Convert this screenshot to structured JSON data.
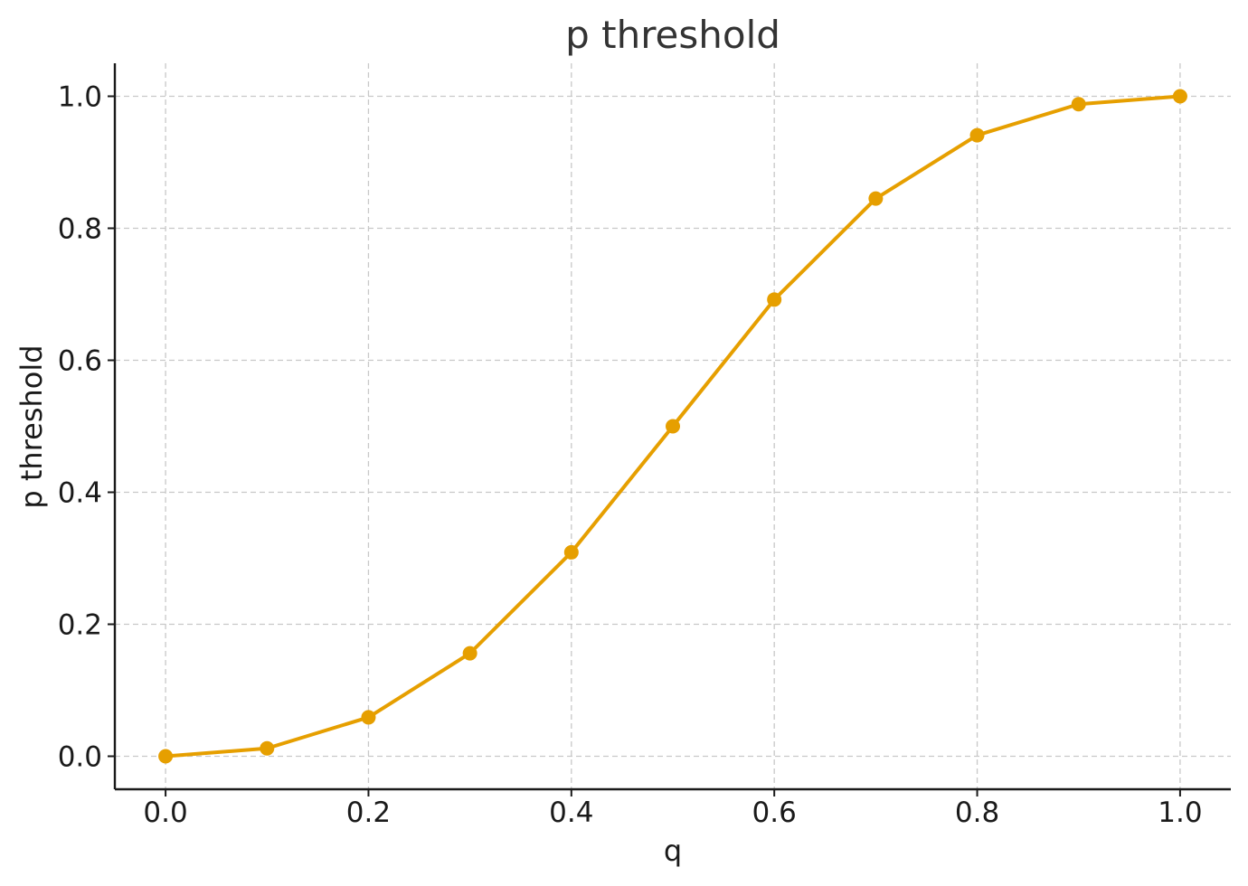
{
  "chart_data": {
    "type": "line",
    "title": "p threshold",
    "xlabel": "q",
    "ylabel": "p threshold",
    "xlim": [
      -0.05,
      1.05
    ],
    "ylim": [
      -0.05,
      1.05
    ],
    "xticks": [
      "0.0",
      "0.2",
      "0.4",
      "0.6",
      "0.8",
      "1.0"
    ],
    "yticks": [
      "0.0",
      "0.2",
      "0.4",
      "0.6",
      "0.8",
      "1.0"
    ],
    "grid": true,
    "series": [
      {
        "color": "#E69F00",
        "marker": "circle",
        "x": [
          0.0,
          0.1,
          0.2,
          0.3,
          0.4,
          0.5,
          0.6,
          0.7,
          0.8,
          0.9,
          1.0
        ],
        "y": [
          0.0,
          0.012,
          0.059,
          0.156,
          0.309,
          0.5,
          0.692,
          0.845,
          0.941,
          0.988,
          1.0
        ]
      }
    ]
  }
}
